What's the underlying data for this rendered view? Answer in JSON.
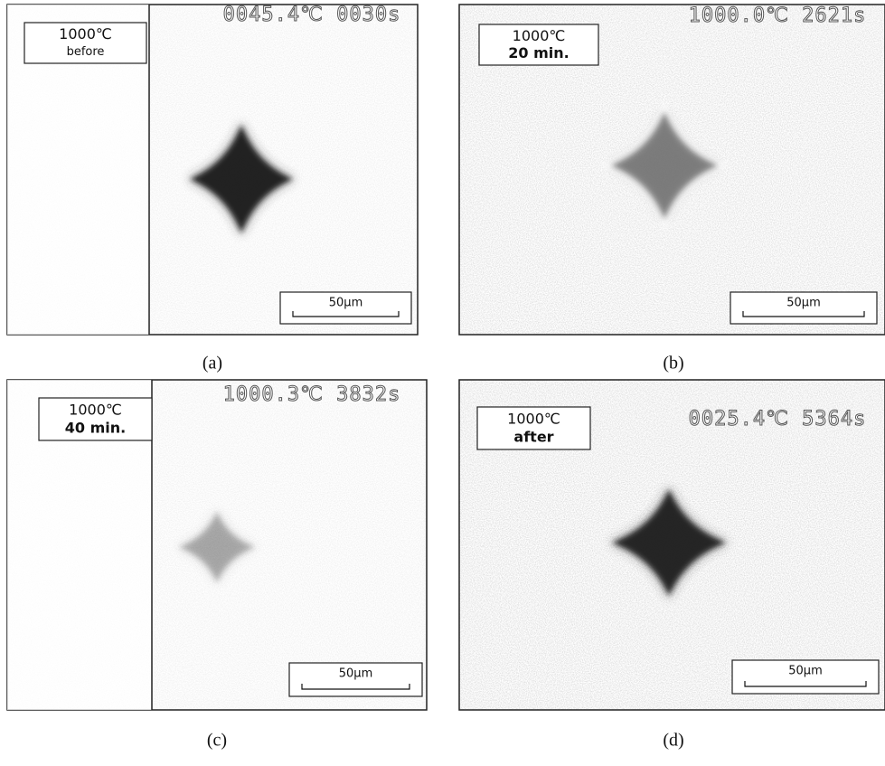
{
  "panels": [
    {
      "label_line1": "1000℃",
      "label_line2": "before",
      "reading": "0045.4℃ 0030s",
      "scale": "50μm",
      "caption": "(a)"
    },
    {
      "label_line1": "1000℃",
      "label_line2": "20 min.",
      "reading": "1000.0℃ 2621s",
      "scale": "50μm",
      "caption": "(b)"
    },
    {
      "label_line1": "1000℃",
      "label_line2": "40 min.",
      "reading": "1000.3℃ 3832s",
      "scale": "50μm",
      "caption": "(c)"
    },
    {
      "label_line1": "1000℃",
      "label_line2": "after",
      "reading": "0025.4℃ 5364s",
      "scale": "50μm",
      "caption": "(d)"
    }
  ]
}
